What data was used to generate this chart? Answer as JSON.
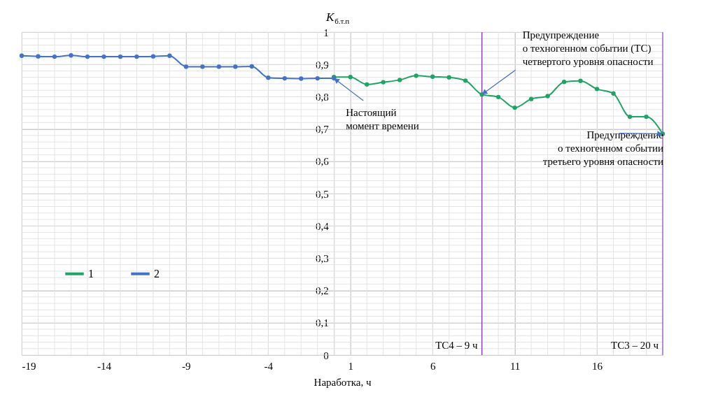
{
  "chart_data": {
    "type": "line",
    "xlabel": "Наработка, ч",
    "ylabel": "K$_{б.т.п}$",
    "xlim": [
      -19,
      20
    ],
    "xticks": [
      -19,
      -14,
      -9,
      -4,
      1,
      6,
      11,
      16
    ],
    "ylim": [
      0,
      1
    ],
    "yticks": [
      0,
      {
        "value": 0.1,
        "label": "0,1"
      },
      {
        "value": 0.2,
        "label": "0,2"
      },
      {
        "value": 0.3,
        "label": "0,3"
      },
      {
        "value": 0.4,
        "label": "0,4"
      },
      {
        "value": 0.5,
        "label": "0,5"
      },
      {
        "value": 0.6,
        "label": "0,6"
      },
      {
        "value": 0.7,
        "label": "0,7"
      },
      {
        "value": 0.8,
        "label": "0,8"
      },
      {
        "value": 0.9,
        "label": "0,9"
      },
      1
    ],
    "grid": true,
    "legend": "left",
    "marker": "circle",
    "line_style": "solid",
    "series": [
      {
        "name": "1",
        "color": "#21a366",
        "x": [
          0,
          1,
          2,
          3,
          4,
          5,
          6,
          7,
          8,
          9,
          10,
          11,
          12,
          13,
          14,
          15,
          16,
          17,
          18,
          19,
          20
        ],
        "values": [
          0.861,
          0.861,
          0.838,
          0.845,
          0.852,
          0.865,
          0.862,
          0.86,
          0.85,
          0.807,
          0.799,
          0.766,
          0.793,
          0.802,
          0.846,
          0.849,
          0.824,
          0.81,
          0.738,
          0.738,
          0.685
        ]
      },
      {
        "name": "2",
        "color": "#4472c4",
        "x": [
          -19,
          -18,
          -17,
          -16,
          -15,
          -14,
          -13,
          -12,
          -11,
          -10,
          -9,
          -8,
          -7,
          -6,
          -5,
          -4,
          -3,
          -2,
          -1,
          0
        ],
        "values": [
          0.927,
          0.925,
          0.924,
          0.928,
          0.924,
          0.924,
          0.924,
          0.924,
          0.925,
          0.927,
          0.893,
          0.893,
          0.893,
          0.893,
          0.894,
          0.859,
          0.857,
          0.856,
          0.857,
          0.857
        ]
      }
    ],
    "ref_lines": [
      {
        "axis": "x",
        "value": 9,
        "label": "ТС4 – 9 ч",
        "color": "#8e44ad"
      },
      {
        "axis": "x",
        "value": 20,
        "label": "ТС3 – 20 ч",
        "color": "#a569bd"
      }
    ],
    "annotations": [
      {
        "text": "Настоящий\nмомент времени",
        "x": 0,
        "y": 0.857
      },
      {
        "text": "Предупреждение\nо техногенном событии (ТС)\nчетвертого уровня опасности",
        "x": 9,
        "y": 0.807
      },
      {
        "text": "Предупреждение\nо техногенном событии\nтретьего уровня опасности",
        "x": 20,
        "y": 0.685
      }
    ]
  }
}
